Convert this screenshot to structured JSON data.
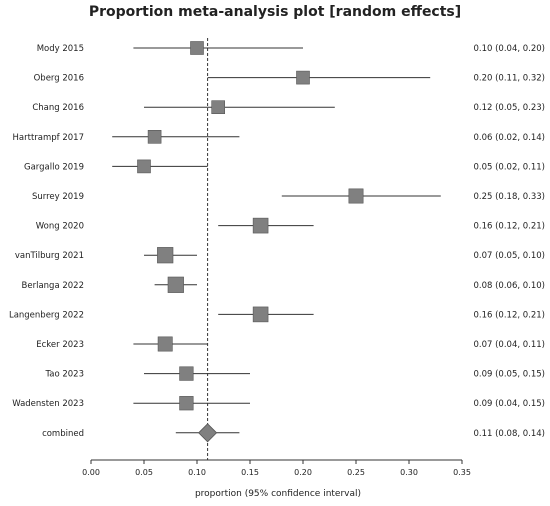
{
  "chart_data": {
    "type": "forest",
    "title": "Proportion meta-analysis plot [random effects]",
    "xlabel": "proportion (95% confidence interval)",
    "xlim": [
      0.0,
      0.35
    ],
    "xticks": [
      "0.00",
      "0.05",
      "0.10",
      "0.15",
      "0.20",
      "0.25",
      "0.30",
      "0.35"
    ],
    "reference_line": 0.11,
    "studies": [
      {
        "label": "Mody 2015",
        "estimate": 0.1,
        "lower": 0.04,
        "upper": 0.2,
        "ci_text": "0.10 (0.04, 0.20)",
        "weight": 1.0
      },
      {
        "label": "Oberg 2016",
        "estimate": 0.2,
        "lower": 0.11,
        "upper": 0.32,
        "ci_text": "0.20 (0.11, 0.32)",
        "weight": 1.0
      },
      {
        "label": "Chang 2016",
        "estimate": 0.12,
        "lower": 0.05,
        "upper": 0.23,
        "ci_text": "0.12 (0.05, 0.23)",
        "weight": 1.0
      },
      {
        "label": "Harttrampf 2017",
        "estimate": 0.06,
        "lower": 0.02,
        "upper": 0.14,
        "ci_text": "0.06 (0.02, 0.14)",
        "weight": 1.0
      },
      {
        "label": "Gargallo 2019",
        "estimate": 0.05,
        "lower": 0.02,
        "upper": 0.11,
        "ci_text": "0.05 (0.02, 0.11)",
        "weight": 1.0
      },
      {
        "label": "Surrey 2019",
        "estimate": 0.25,
        "lower": 0.18,
        "upper": 0.33,
        "ci_text": "0.25 (0.18, 0.33)",
        "weight": 1.1
      },
      {
        "label": "Wong 2020",
        "estimate": 0.16,
        "lower": 0.12,
        "upper": 0.21,
        "ci_text": "0.16 (0.12, 0.21)",
        "weight": 1.15
      },
      {
        "label": "vanTilburg 2021",
        "estimate": 0.07,
        "lower": 0.05,
        "upper": 0.1,
        "ci_text": "0.07 (0.05, 0.10)",
        "weight": 1.2
      },
      {
        "label": "Berlanga 2022",
        "estimate": 0.08,
        "lower": 0.06,
        "upper": 0.1,
        "ci_text": "0.08 (0.06, 0.10)",
        "weight": 1.2
      },
      {
        "label": "Langenberg 2022",
        "estimate": 0.16,
        "lower": 0.12,
        "upper": 0.21,
        "ci_text": "0.16 (0.12, 0.21)",
        "weight": 1.15
      },
      {
        "label": "Ecker 2023",
        "estimate": 0.07,
        "lower": 0.04,
        "upper": 0.11,
        "ci_text": "0.07 (0.04, 0.11)",
        "weight": 1.1
      },
      {
        "label": "Tao 2023",
        "estimate": 0.09,
        "lower": 0.05,
        "upper": 0.15,
        "ci_text": "0.09 (0.05, 0.15)",
        "weight": 1.05
      },
      {
        "label": "Wadensten 2023",
        "estimate": 0.09,
        "lower": 0.04,
        "upper": 0.15,
        "ci_text": "0.09 (0.04, 0.15)",
        "weight": 1.05
      }
    ],
    "combined": {
      "label": "combined",
      "estimate": 0.11,
      "lower": 0.08,
      "upper": 0.14,
      "ci_text": "0.11 (0.08, 0.14)"
    },
    "colors": {
      "marker": "#808080",
      "marker_outline": "#555555",
      "line": "#333333"
    }
  }
}
